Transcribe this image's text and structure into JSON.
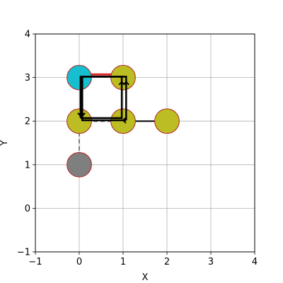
{
  "chart_data": {
    "type": "scatter",
    "title": "",
    "xlabel": "X",
    "ylabel": "Y",
    "xlim": [
      -1,
      4
    ],
    "ylim": [
      -1,
      4
    ],
    "xticks": [
      -1,
      0,
      1,
      2,
      3,
      4
    ],
    "yticks": [
      -1,
      0,
      1,
      2,
      3,
      4
    ],
    "xtick_labels": [
      "−1",
      "0",
      "1",
      "2",
      "3",
      "4"
    ],
    "ytick_labels": [
      "−1",
      "0",
      "1",
      "2",
      "3",
      "4"
    ],
    "grid": true,
    "nodes": [
      {
        "x": 0,
        "y": 3,
        "color": "#17becf"
      },
      {
        "x": 1,
        "y": 3,
        "color": "#bcbd22"
      },
      {
        "x": 0,
        "y": 2,
        "color": "#bcbd22"
      },
      {
        "x": 1,
        "y": 2,
        "color": "#bcbd22"
      },
      {
        "x": 2,
        "y": 2,
        "color": "#bcbd22"
      },
      {
        "x": 0,
        "y": 1,
        "color": "#7f7f7f"
      }
    ],
    "node_edge_color": "#b22222",
    "edges": [
      {
        "from": [
          0,
          1
        ],
        "to": [
          0,
          2
        ],
        "color": "#7f7f7f",
        "style": "dashed"
      },
      {
        "from": [
          0,
          2
        ],
        "to": [
          1,
          2
        ],
        "color": "#555555",
        "style": "dashed"
      },
      {
        "from": [
          1,
          2
        ],
        "to": [
          2,
          2
        ],
        "color": "#000000",
        "style": "solid"
      },
      {
        "from": [
          0.05,
          3.07
        ],
        "to": [
          1.05,
          3.07
        ],
        "color": "#d62728",
        "style": "solid"
      }
    ],
    "paths": [
      {
        "color": "#000000",
        "points": [
          [
            0.03,
            2.07
          ],
          [
            0.03,
            3.02
          ],
          [
            0.97,
            3.02
          ],
          [
            0.97,
            2.07
          ],
          [
            0.03,
            2.07
          ]
        ]
      },
      {
        "color": "#000000",
        "points": [
          [
            1.07,
            2.02
          ],
          [
            1.07,
            3.02
          ],
          [
            0.07,
            3.02
          ],
          [
            0.07,
            2.02
          ],
          [
            1.07,
            2.02
          ]
        ]
      }
    ],
    "arrow_heads": [
      {
        "x": 0.03,
        "y": 2.12,
        "dir": "down"
      },
      {
        "x": 0.97,
        "y": 2.9,
        "dir": "up"
      },
      {
        "x": 1.07,
        "y": 2.9,
        "dir": "up"
      },
      {
        "x": 0.07,
        "y": 2.12,
        "dir": "down"
      },
      {
        "x": 1.0,
        "y": 2.02,
        "dir": "left"
      }
    ]
  }
}
